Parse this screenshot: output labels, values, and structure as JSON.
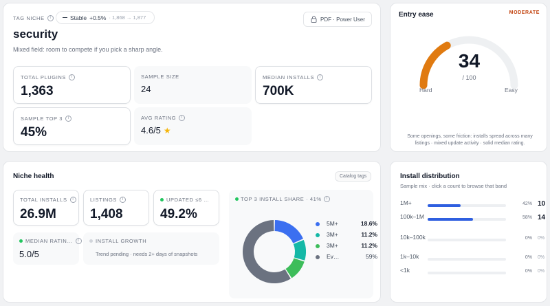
{
  "overview": {
    "tag_label": "TAG NICHE",
    "trend_icon": "minus",
    "trend_status": "Stable",
    "trend_delta": "+0.5%",
    "trend_range": "· 1,868 → 1,877",
    "pdf_button": "PDF · Power User",
    "title": "security",
    "subtitle": "Mixed field: room to compete if you pick a sharp angle.",
    "total_plugins": {
      "label": "TOTAL PLUGINS",
      "value": "1,363"
    },
    "sample_size": {
      "label": "SAMPLE SIZE",
      "value": "24"
    },
    "median_installs": {
      "label": "MEDIAN INSTALLS",
      "value": "700K"
    },
    "sample_top3": {
      "label": "SAMPLE TOP 3",
      "value": "45%"
    },
    "avg_rating": {
      "label": "AVG RATING",
      "value": "4.6/5",
      "star_color": "#f5b50a"
    }
  },
  "entry": {
    "title": "Entry ease",
    "badge": "MODERATE",
    "badge_color": "#c2410c",
    "score": "34",
    "score_value": 34,
    "score_max": "/ 100",
    "left_label": "Hard",
    "right_label": "Easy",
    "gauge_color": "#e07a10",
    "description": "Some openings, some friction: installs spread across many listings · mixed update activity · solid median rating."
  },
  "health": {
    "title": "Niche health",
    "catalog_button": "Catalog tags",
    "total_installs": {
      "label": "TOTAL INSTALLS",
      "value": "26.9M"
    },
    "listings": {
      "label": "LISTINGS",
      "value": "1,408"
    },
    "updated": {
      "label": "UPDATED ≤6 …",
      "value": "49.2%"
    },
    "median_rating": {
      "label": "MEDIAN RATIN…",
      "value": "5.0/5"
    },
    "install_growth": {
      "label": "INSTALL GROWTH",
      "text": "Trend pending · needs 2+ days of snapshots"
    },
    "top3": {
      "label": "TOP 3 INSTALL SHARE · 41%"
    },
    "status_green": "#22c55e"
  },
  "chart_data": {
    "type": "pie",
    "title": "TOP 3 INSTALL SHARE · 41%",
    "categories": [
      "5M+",
      "3M+",
      "3M+",
      "Ev…"
    ],
    "values": [
      18.6,
      11.2,
      11.2,
      59
    ],
    "labels": [
      "18.6%",
      "11.2%",
      "11.2%",
      "59%"
    ],
    "colors": [
      "#3b6ff0",
      "#14b8a6",
      "#3dbd5a",
      "#6b7280"
    ]
  },
  "distribution": {
    "title": "Install distribution",
    "subtitle": "Sample mix · click a count to browse that band",
    "bar_color": "#2f5fe0",
    "rows": [
      {
        "name": "1M+",
        "pct": "42%",
        "pct_value": 42,
        "count": "10"
      },
      {
        "name": "100k–1M",
        "pct": "58%",
        "pct_value": 58,
        "count": "14"
      },
      {
        "name": "10k–100k",
        "pct": "0%",
        "pct_value": 0,
        "count": "0%"
      },
      {
        "name": "1k–10k",
        "pct": "0%",
        "pct_value": 0,
        "count": "0%"
      },
      {
        "name": "<1k",
        "pct": "0%",
        "pct_value": 0,
        "count": "0%"
      }
    ]
  }
}
